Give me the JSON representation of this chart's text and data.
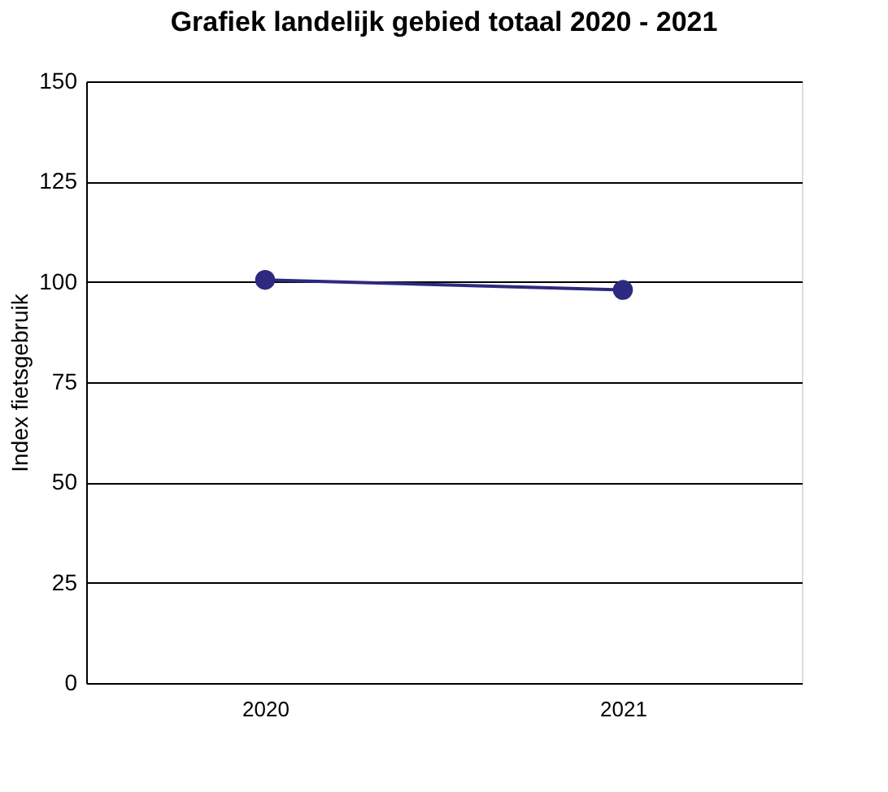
{
  "chart_data": {
    "type": "line",
    "title": "Grafiek landelijk gebied totaal 2020 - 2021",
    "ylabel": "Index fietsgebruik",
    "categories": [
      "2020",
      "2021"
    ],
    "series": [
      {
        "color": "#2e2a80",
        "values": [
          100.5,
          98
        ]
      }
    ],
    "ylim": [
      0,
      150
    ],
    "yticks": [
      0,
      25,
      50,
      75,
      100,
      125,
      150
    ],
    "grid": "y",
    "marker": "circle"
  }
}
